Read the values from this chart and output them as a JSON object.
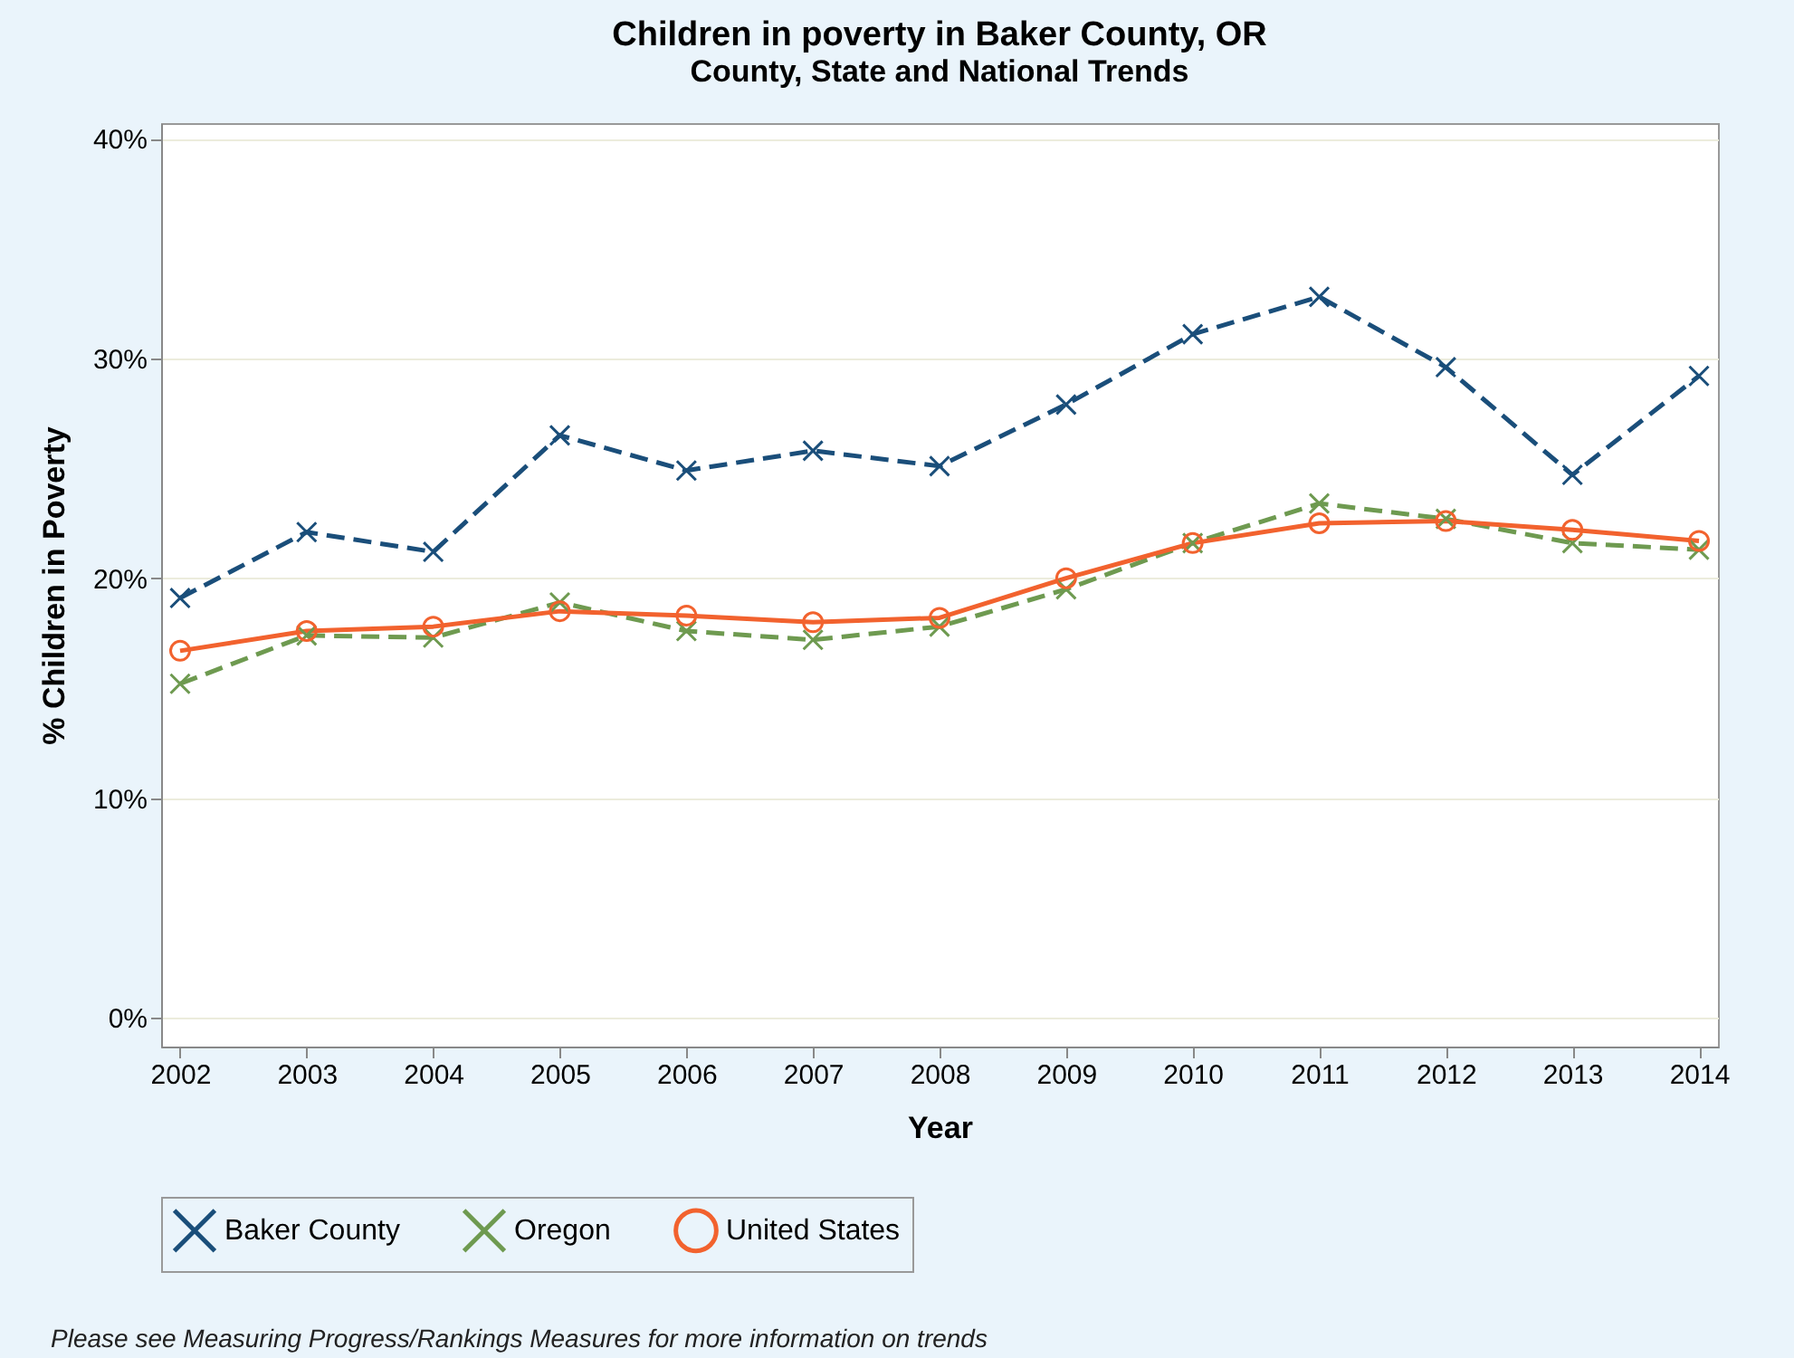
{
  "chart_data": {
    "type": "line",
    "title": "Children in poverty in Baker County, OR",
    "subtitle": "County, State and National Trends",
    "xlabel": "Year",
    "ylabel": "% Children in Poverty",
    "categories": [
      "2002",
      "2003",
      "2004",
      "2005",
      "2006",
      "2007",
      "2008",
      "2009",
      "2010",
      "2011",
      "2012",
      "2013",
      "2014"
    ],
    "series": [
      {
        "name": "Baker County",
        "color": "#1a4e7a",
        "marker": "cross",
        "line_style": "dashed",
        "values": [
          19.1,
          22.1,
          21.2,
          26.5,
          24.9,
          25.8,
          25.1,
          27.9,
          31.1,
          32.8,
          29.6,
          24.7,
          29.2
        ]
      },
      {
        "name": "Oregon",
        "color": "#6e9a50",
        "marker": "cross",
        "line_style": "dashed",
        "values": [
          15.2,
          17.4,
          17.3,
          18.9,
          17.6,
          17.2,
          17.8,
          19.5,
          21.6,
          23.4,
          22.7,
          21.6,
          21.3
        ]
      },
      {
        "name": "United States",
        "color": "#f2622e",
        "marker": "circle",
        "line_style": "solid",
        "values": [
          16.7,
          17.6,
          17.8,
          18.5,
          18.3,
          18.0,
          18.2,
          20.0,
          21.6,
          22.5,
          22.6,
          22.2,
          21.7
        ]
      }
    ],
    "ylim": [
      -1.3,
      40.7
    ],
    "yticks": [
      {
        "value": 0,
        "label": "0%"
      },
      {
        "value": 10,
        "label": "10%"
      },
      {
        "value": 20,
        "label": "20%"
      },
      {
        "value": 30,
        "label": "30%"
      },
      {
        "value": 40,
        "label": "40%"
      }
    ],
    "grid": "y",
    "legend": "bottom",
    "annotations": [
      "Please see Measuring Progress/Rankings Measures for more information on trends"
    ]
  }
}
